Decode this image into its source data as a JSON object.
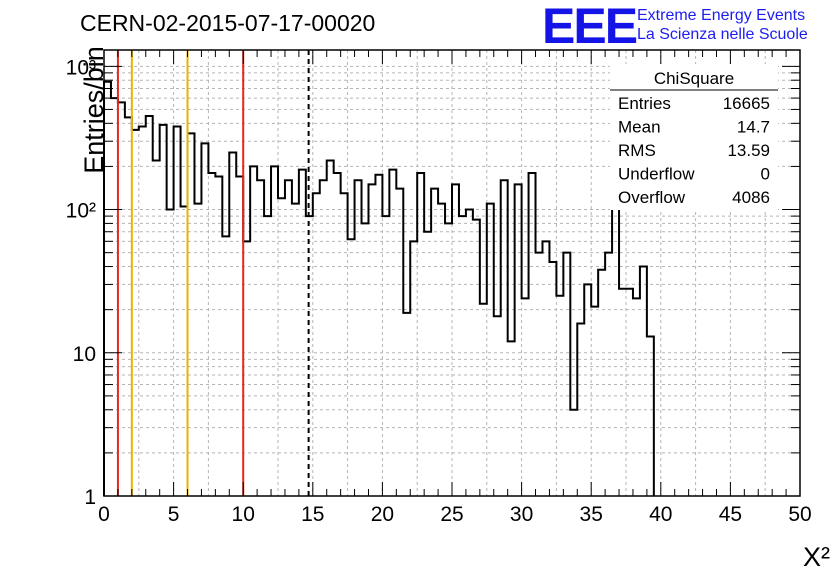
{
  "title": "CERN-02-2015-07-17-00020",
  "logo": {
    "mark": "EEE",
    "line1": "Extreme Energy Events",
    "line2": "La Scienza nelle Scuole",
    "color": "#1414e6"
  },
  "stats": {
    "title": "ChiSquare",
    "rows": [
      {
        "label": "Entries",
        "value": "16665"
      },
      {
        "label": "Mean",
        "value": "14.7"
      },
      {
        "label": "RMS",
        "value": "13.59"
      },
      {
        "label": "Underflow",
        "value": "0"
      },
      {
        "label": "Overflow",
        "value": "4086"
      }
    ]
  },
  "chart_data": {
    "type": "bar",
    "histogram": true,
    "xlabel": "X²",
    "ylabel": "Entries/bin",
    "xlim": [
      0,
      50
    ],
    "ylim": [
      1,
      1300
    ],
    "ylog": true,
    "grid": true,
    "x_ticks": [
      "0",
      "5",
      "10",
      "15",
      "20",
      "25",
      "30",
      "35",
      "40",
      "45",
      "50"
    ],
    "y_ticks": [
      {
        "value": 1,
        "label": "1"
      },
      {
        "value": 10,
        "label": "10"
      },
      {
        "value": 100,
        "label": "10²"
      },
      {
        "value": 1000,
        "label": "10³"
      }
    ],
    "bin_width": 0.5,
    "values": [
      780,
      600,
      560,
      440,
      360,
      380,
      450,
      220,
      390,
      100,
      380,
      105,
      340,
      110,
      290,
      180,
      170,
      65,
      250,
      170,
      60,
      200,
      160,
      90,
      200,
      120,
      160,
      110,
      190,
      90,
      130,
      160,
      220,
      180,
      130,
      62,
      160,
      80,
      150,
      175,
      90,
      190,
      140,
      19,
      60,
      180,
      70,
      140,
      110,
      80,
      150,
      90,
      100,
      85,
      22,
      110,
      18,
      160,
      12,
      150,
      24,
      180,
      50,
      60,
      43,
      25,
      50,
      4,
      16,
      30,
      21,
      38,
      50,
      150,
      28,
      28,
      24,
      40,
      13
    ],
    "lines": [
      {
        "x": 1,
        "color": "#e8261a",
        "style": "solid"
      },
      {
        "x": 2,
        "color": "#e8b400",
        "style": "solid"
      },
      {
        "x": 6,
        "color": "#e8b400",
        "style": "solid"
      },
      {
        "x": 10,
        "color": "#e8261a",
        "style": "solid"
      },
      {
        "x": 14.7,
        "color": "#000000",
        "style": "dashed"
      }
    ]
  }
}
